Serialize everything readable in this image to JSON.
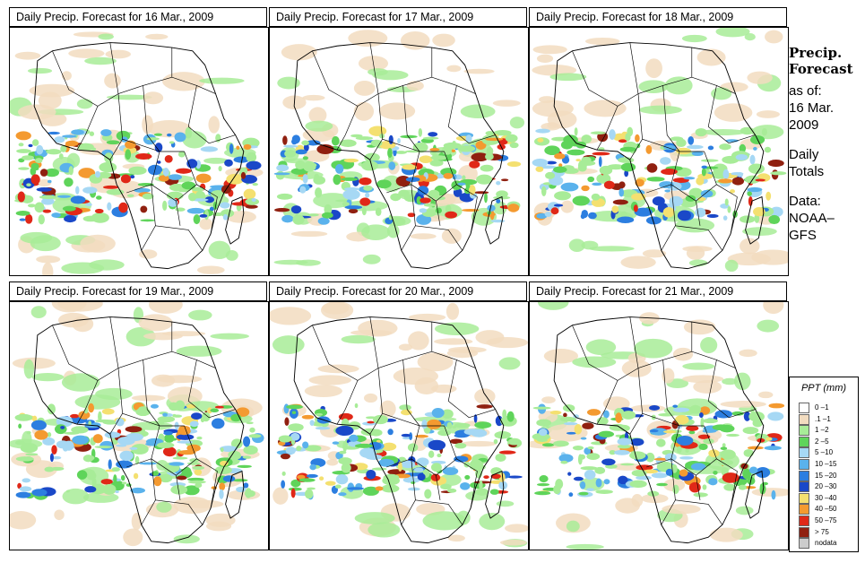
{
  "panels": [
    {
      "title": "Daily Precip. Forecast for  16 Mar., 2009"
    },
    {
      "title": "Daily Precip. Forecast for  17 Mar., 2009"
    },
    {
      "title": "Daily Precip. Forecast for  18 Mar., 2009"
    },
    {
      "title": "Daily Precip. Forecast for  19 Mar., 2009"
    },
    {
      "title": "Daily Precip. Forecast for  20 Mar., 2009"
    },
    {
      "title": "Daily Precip. Forecast for  21 Mar., 2009"
    }
  ],
  "sidebar": {
    "heading1": "Precip.",
    "heading2": "Forecast",
    "asof1": "as of:",
    "asof2": "16 Mar.",
    "asof3": "2009",
    "daily1": "Daily",
    "daily2": "Totals",
    "data1": "Data:",
    "data2": "NOAA–",
    "data3": "GFS"
  },
  "legend": {
    "title": "PPT (mm)",
    "items": [
      {
        "label": "0 –1",
        "color": "#ffffff"
      },
      {
        "label": ".1 –1",
        "color": "#f2dcc0"
      },
      {
        "label": "1 –2",
        "color": "#a8ec98"
      },
      {
        "label": "2 –5",
        "color": "#5fd45a"
      },
      {
        "label": "5 –10",
        "color": "#a6d8f4"
      },
      {
        "label": "10 –15",
        "color": "#5ab2ec"
      },
      {
        "label": "15 –20",
        "color": "#2c7ee0"
      },
      {
        "label": "20 –30",
        "color": "#1a48c8"
      },
      {
        "label": "30 –40",
        "color": "#f4e070"
      },
      {
        "label": "40 –50",
        "color": "#f49a30"
      },
      {
        "label": "50 –75",
        "color": "#e02818"
      },
      {
        "label": "> 75",
        "color": "#902010"
      },
      {
        "label": "nodata",
        "color": "#cccccc"
      }
    ]
  }
}
